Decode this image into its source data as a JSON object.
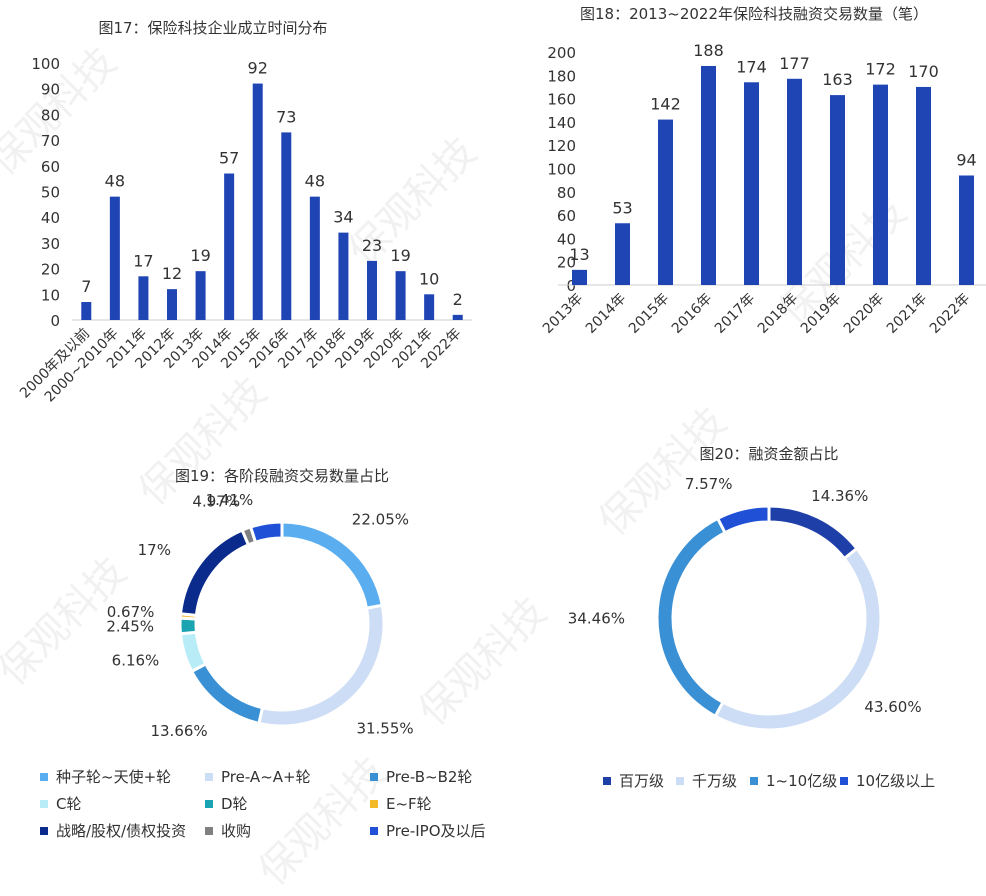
{
  "watermark": "保观科技",
  "colors": {
    "bar": "#1f45b5",
    "axis": "#cccccc",
    "text": "#333333"
  },
  "chart_data": [
    {
      "type": "bar",
      "title": "图17：保险科技企业成立时间分布",
      "categories": [
        "2000年及以前",
        "2000~2010年",
        "2011年",
        "2012年",
        "2013年",
        "2014年",
        "2015年",
        "2016年",
        "2017年",
        "2018年",
        "2019年",
        "2020年",
        "2021年",
        "2022年"
      ],
      "values": [
        7,
        48,
        17,
        12,
        19,
        57,
        92,
        73,
        48,
        34,
        23,
        19,
        10,
        2
      ],
      "ylim": [
        0,
        100
      ],
      "yticks": [
        "0",
        "10",
        "20",
        "30",
        "40",
        "50",
        "60",
        "70",
        "80",
        "90",
        "100"
      ],
      "xlabel": "",
      "ylabel": "",
      "grid": false
    },
    {
      "type": "bar",
      "title": "图18：2013~2022年保险科技融资交易数量（笔）",
      "categories": [
        "2013年",
        "2014年",
        "2015年",
        "2016年",
        "2017年",
        "2018年",
        "2019年",
        "2020年",
        "2021年",
        "2022年"
      ],
      "values": [
        13,
        53,
        142,
        188,
        174,
        177,
        163,
        172,
        170,
        94
      ],
      "ylim": [
        0,
        200
      ],
      "yticks": [
        "0",
        "20",
        "40",
        "60",
        "80",
        "100",
        "120",
        "140",
        "160",
        "180",
        "200"
      ],
      "xlabel": "",
      "ylabel": "",
      "grid": false
    },
    {
      "type": "pie",
      "title": "图19：各阶段融资交易数量占比",
      "legend_position": "bottom",
      "slices": [
        {
          "label": "种子轮~天使+轮",
          "value": 22.05,
          "value_label": "22.05%",
          "color": "#5aaef0"
        },
        {
          "label": "Pre-A~A+轮",
          "value": 31.55,
          "value_label": "31.55%",
          "color": "#cdddf5"
        },
        {
          "label": "Pre-B~B2轮",
          "value": 13.66,
          "value_label": "13.66%",
          "color": "#3a90d4"
        },
        {
          "label": "C轮",
          "value": 6.16,
          "value_label": "6.16%",
          "color": "#b8ecf7"
        },
        {
          "label": "D轮",
          "value": 2.45,
          "value_label": "2.45%",
          "color": "#1aa3b0"
        },
        {
          "label": "E~F轮",
          "value": 0.67,
          "value_label": "0.67%",
          "color": "#f2b928"
        },
        {
          "label": "战略/股权/债权投资",
          "value": 17,
          "value_label": "17%",
          "color": "#0b2b8c"
        },
        {
          "label": "收购",
          "value": 1.41,
          "value_label": "1.41%",
          "color": "#808080"
        },
        {
          "label": "Pre-IPO及以后",
          "value": 4.97,
          "value_label": "4.97%",
          "color": "#2050d6"
        }
      ]
    },
    {
      "type": "pie",
      "title": "图20：融资金额占比",
      "legend_position": "bottom",
      "slices": [
        {
          "label": "百万级",
          "value": 14.36,
          "value_label": "14.36%",
          "color": "#1f3fa8"
        },
        {
          "label": "千万级",
          "value": 43.6,
          "value_label": "43.60%",
          "color": "#cdddf5"
        },
        {
          "label": "1~10亿级",
          "value": 34.46,
          "value_label": "34.46%",
          "color": "#3a90d4"
        },
        {
          "label": "10亿级以上",
          "value": 7.57,
          "value_label": "7.57%",
          "color": "#2050d6"
        }
      ]
    }
  ]
}
